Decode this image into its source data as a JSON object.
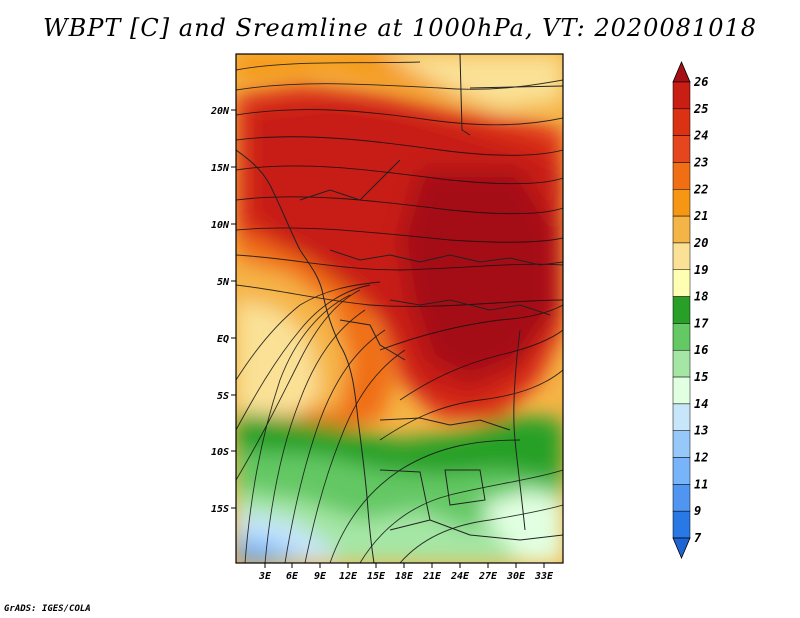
{
  "title": "WBPT [C] and Sreamline at 1000hPa, VT: 2020081018",
  "credit": "GrADS: IGES/COLA",
  "map": {
    "lat_labels": [
      "20N",
      "15N",
      "10N",
      "5N",
      "EQ",
      "5S",
      "10S",
      "15S"
    ],
    "lon_labels": [
      "3E",
      "6E",
      "9E",
      "12E",
      "15E",
      "18E",
      "21E",
      "24E",
      "27E",
      "30E",
      "33E"
    ]
  },
  "colorbar": {
    "levels": [
      "26",
      "25",
      "24",
      "23",
      "22",
      "21",
      "20",
      "19",
      "18",
      "17",
      "16",
      "15",
      "14",
      "13",
      "12",
      "11",
      "9",
      "7"
    ],
    "colors": [
      "#a50f15",
      "#c81e14",
      "#dc3214",
      "#e6461e",
      "#f06e14",
      "#f59614",
      "#f5b446",
      "#fae196",
      "#ffffb4",
      "#28a028",
      "#64c864",
      "#a5e6a5",
      "#e1ffe1",
      "#c8e6fa",
      "#96c8fa",
      "#78b4fa",
      "#5096f0",
      "#2878e6",
      "#1e64d2"
    ]
  }
}
